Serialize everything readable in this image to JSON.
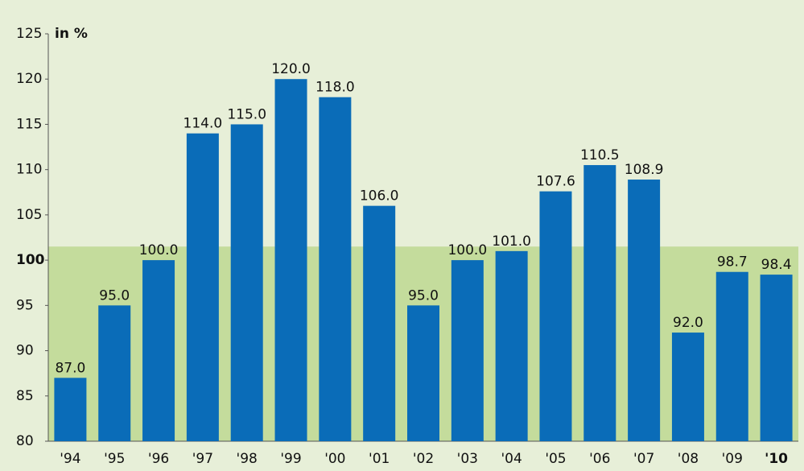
{
  "chart_data": {
    "type": "bar",
    "y_unit_label": "in %",
    "categories": [
      "'94",
      "'95",
      "'96",
      "'97",
      "'98",
      "'99",
      "'00",
      "'01",
      "'02",
      "'03",
      "'04",
      "'05",
      "'06",
      "'07",
      "'08",
      "'09",
      "'10"
    ],
    "values": [
      87.0,
      95.0,
      100.0,
      114.0,
      115.0,
      120.0,
      118.0,
      106.0,
      95.0,
      100.0,
      101.0,
      107.6,
      110.5,
      108.9,
      92.0,
      98.7,
      98.4
    ],
    "value_labels": [
      "87.0",
      "95.0",
      "100.0",
      "114.0",
      "115.0",
      "120.0",
      "118.0",
      "106.0",
      "95.0",
      "100.0",
      "101.0",
      "107.6",
      "110.5",
      "108.9",
      "92.0",
      "98.7",
      "98.4"
    ],
    "color": "#0a6cb8",
    "background_color": "#e7efd8",
    "band_ylim": [
      80,
      101.5
    ],
    "band_color": "#c4dc9c",
    "emphasis_ytick": 100,
    "emphasis_category_index": 16,
    "ylim": [
      80,
      125
    ],
    "yticks": [
      80,
      85,
      90,
      95,
      100,
      105,
      110,
      115,
      120,
      125
    ],
    "grid": false
  }
}
